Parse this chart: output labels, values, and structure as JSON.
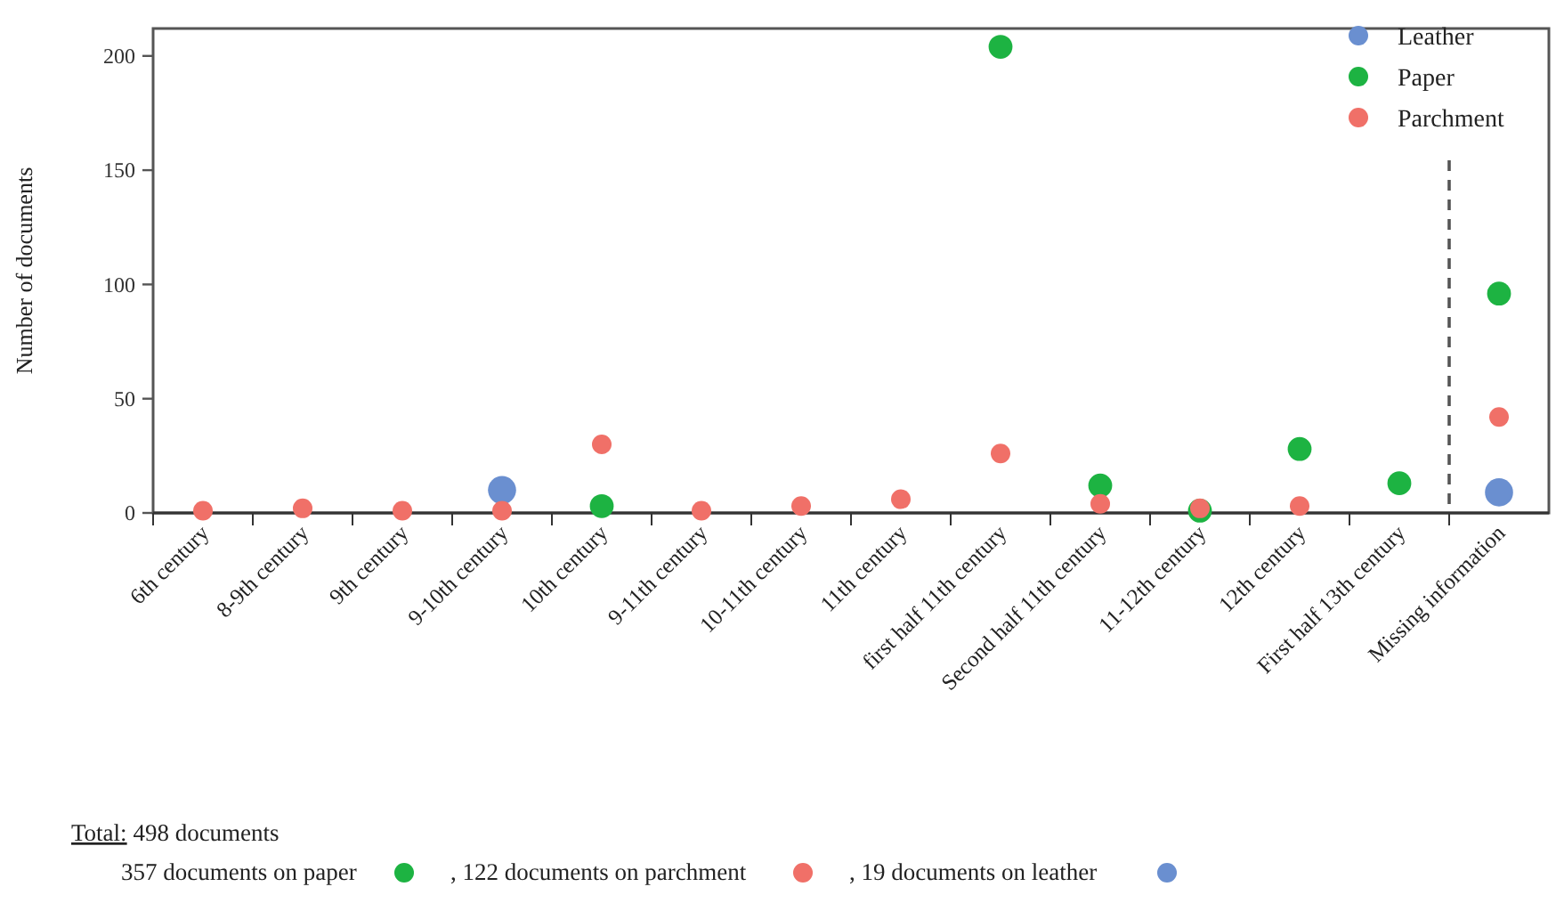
{
  "chart_data": {
    "type": "scatter",
    "ylabel": "Number of documents",
    "categories": [
      "6th century",
      "8-9th century",
      "9th century",
      "9-10th century",
      "10th century",
      "9-11th century",
      "10-11th century",
      "11th century",
      "first half 11th century",
      "Second half 11th century",
      "11-12th century",
      "12th century",
      "First half 13th century",
      "Missing information"
    ],
    "series": [
      {
        "name": "Leather",
        "color": "#6a8fd0",
        "values": [
          null,
          null,
          null,
          10,
          null,
          null,
          null,
          null,
          null,
          null,
          null,
          null,
          null,
          9
        ]
      },
      {
        "name": "Paper",
        "color": "#1db342",
        "values": [
          null,
          null,
          null,
          null,
          3,
          null,
          null,
          null,
          204,
          12,
          1,
          28,
          13,
          96
        ]
      },
      {
        "name": "Parchment",
        "color": "#f07068",
        "values": [
          1,
          2,
          1,
          1,
          30,
          1,
          3,
          6,
          26,
          4,
          2,
          3,
          null,
          42
        ]
      }
    ],
    "ylim": [
      0,
      212
    ],
    "yticks": [
      0,
      50,
      100,
      150,
      200
    ],
    "grid": false,
    "legend": "top right",
    "marker": "circle",
    "annotations": [
      "Total: 498 documents",
      "357 documents on paper",
      ", 122 documents on parchment",
      ", 19 documents on leather"
    ]
  }
}
